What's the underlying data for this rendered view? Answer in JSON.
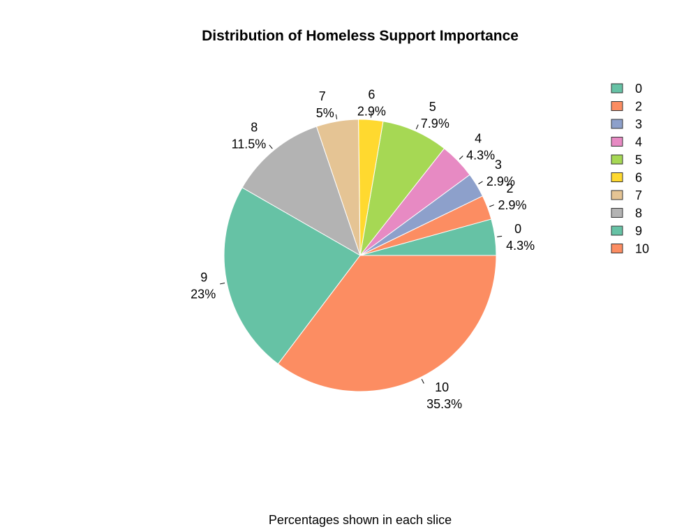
{
  "chart_data": {
    "type": "pie",
    "title": "Distribution of Homeless Support Importance",
    "caption": "Percentages shown in each slice",
    "categories": [
      "0",
      "2",
      "3",
      "4",
      "5",
      "6",
      "7",
      "8",
      "9",
      "10"
    ],
    "values": [
      4.3,
      2.9,
      2.9,
      4.3,
      7.9,
      2.9,
      5.0,
      11.5,
      23.0,
      35.3
    ],
    "percent_labels": [
      "4.3%",
      "2.9%",
      "2.9%",
      "4.3%",
      "7.9%",
      "2.9%",
      "5%",
      "11.5%",
      "23%",
      "35.3%"
    ],
    "colors": [
      "#66c2a5",
      "#fc8d62",
      "#8da0cb",
      "#e78ac3",
      "#a6d854",
      "#ffd92f",
      "#e5c494",
      "#b3b3b3",
      "#66c2a5",
      "#fc8d62"
    ],
    "legend": {
      "position": "right",
      "entries": [
        "0",
        "2",
        "3",
        "4",
        "5",
        "6",
        "7",
        "8",
        "9",
        "10"
      ]
    }
  }
}
